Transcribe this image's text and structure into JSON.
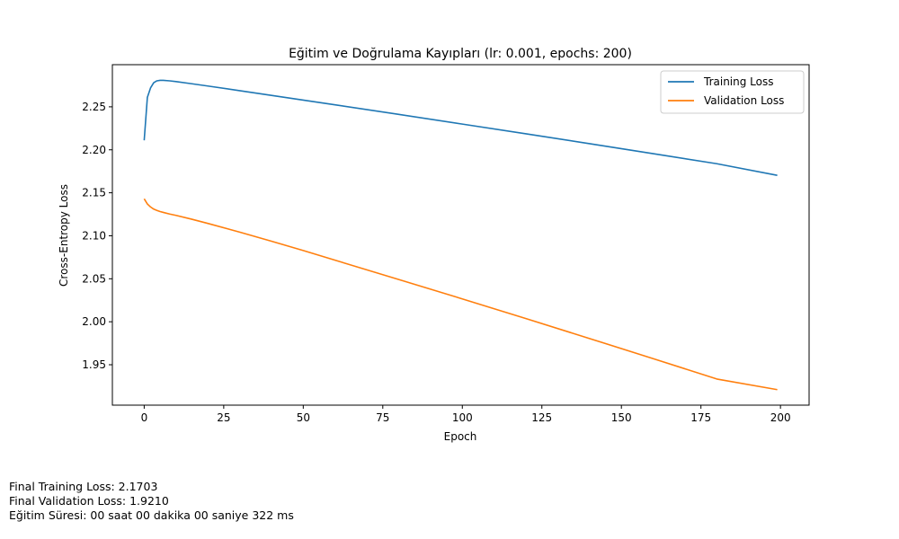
{
  "chart_data": {
    "type": "line",
    "title": "Eğitim ve Doğrulama Kayıpları (lr: 0.001, epochs: 200)",
    "xlabel": "Epoch",
    "ylabel": "Cross-Entropy Loss",
    "xlim": [
      -10,
      209
    ],
    "ylim": [
      1.903,
      2.299
    ],
    "xticks": [
      0,
      25,
      50,
      75,
      100,
      125,
      150,
      175,
      200
    ],
    "yticks": [
      1.95,
      2.0,
      2.05,
      2.1,
      2.15,
      2.2,
      2.25
    ],
    "ytick_labels": [
      "1.95",
      "2.00",
      "2.05",
      "2.10",
      "2.15",
      "2.20",
      "2.25"
    ],
    "grid": false,
    "legend_position": "top-right",
    "series": [
      {
        "name": "Training Loss",
        "color": "#1f77b4",
        "x": [
          0,
          1,
          2,
          3,
          4,
          5,
          6,
          8,
          10,
          15,
          20,
          30,
          40,
          50,
          60,
          80,
          100,
          120,
          140,
          160,
          180,
          199
        ],
        "y": [
          2.211,
          2.261,
          2.272,
          2.278,
          2.2802,
          2.2808,
          2.2808,
          2.2802,
          2.2793,
          2.2768,
          2.2742,
          2.2688,
          2.2633,
          2.2578,
          2.2523,
          2.2412,
          2.2299,
          2.2186,
          2.2071,
          2.1955,
          2.1838,
          2.1703
        ]
      },
      {
        "name": "Validation Loss",
        "color": "#ff7f0e",
        "x": [
          0,
          1,
          2,
          3,
          4,
          5,
          6,
          8,
          10,
          15,
          20,
          30,
          40,
          50,
          60,
          80,
          100,
          120,
          140,
          160,
          180,
          199
        ],
        "y": [
          2.143,
          2.137,
          2.1335,
          2.131,
          2.1295,
          2.1282,
          2.1272,
          2.1253,
          2.1237,
          2.1192,
          2.1144,
          2.1043,
          2.0937,
          2.0828,
          2.0716,
          2.0492,
          2.0266,
          2.0037,
          1.9805,
          1.9571,
          1.9334,
          1.921
        ]
      }
    ]
  },
  "notes": [
    "Final Training Loss: 2.1703",
    "Final Validation Loss: 1.9210",
    "Eğitim Süresi: 00 saat 00 dakika 00 saniye 322 ms"
  ]
}
